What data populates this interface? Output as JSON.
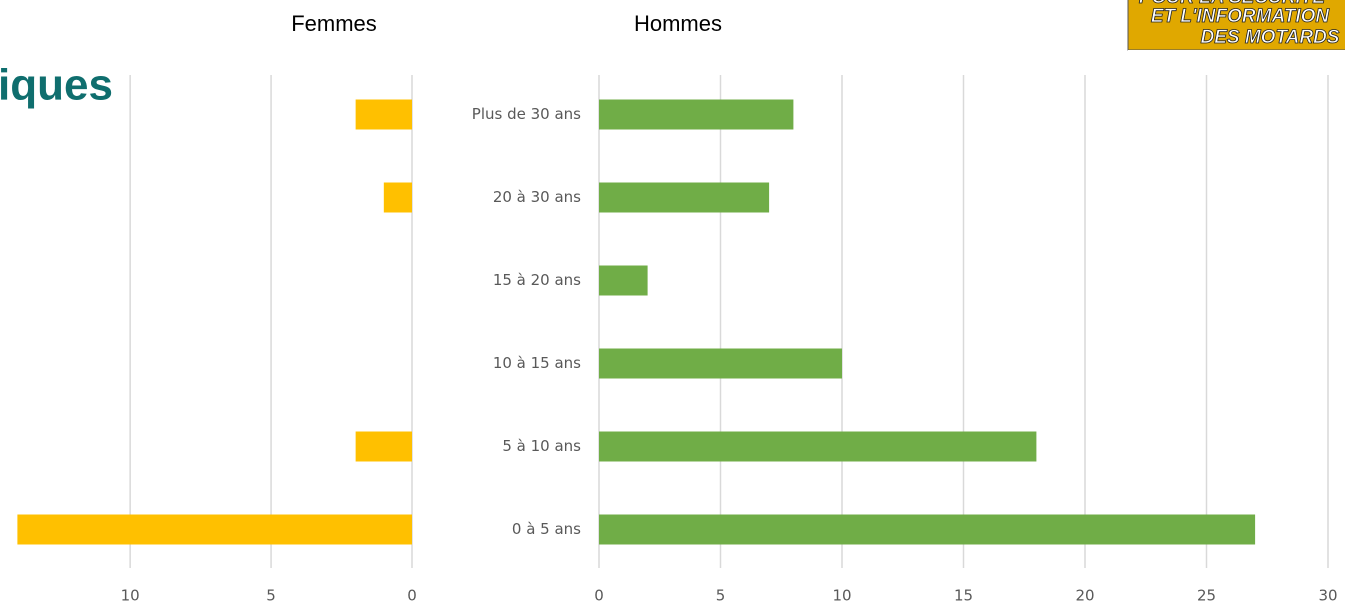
{
  "slide_title": "iques",
  "logo_lines": [
    "POUR LA SÉCURITÉ",
    "ET L'INFORMATION",
    "DES MOTARDS"
  ],
  "chart_data": [
    {
      "type": "bar",
      "orientation": "horizontal",
      "title": "Femmes",
      "values": [
        2,
        1,
        0,
        0,
        2,
        14
      ],
      "color": "#ffc000",
      "xlim": [
        0,
        14.5
      ],
      "xticks": [
        0,
        5,
        10
      ],
      "x_reversed": true,
      "grid": true
    },
    {
      "type": "bar",
      "orientation": "horizontal",
      "title": "Hommes",
      "categories": [
        "Plus de 30 ans",
        "20 à 30 ans",
        "15 à 20 ans",
        "10 à 15 ans",
        "5 à 10 ans",
        "0 à 5 ans"
      ],
      "values": [
        8,
        7,
        2,
        10,
        18,
        27
      ],
      "color": "#70ad47",
      "xlim": [
        0,
        30
      ],
      "xticks": [
        0,
        5,
        10,
        15,
        20,
        25,
        30
      ],
      "x_reversed": false,
      "grid": true
    }
  ]
}
